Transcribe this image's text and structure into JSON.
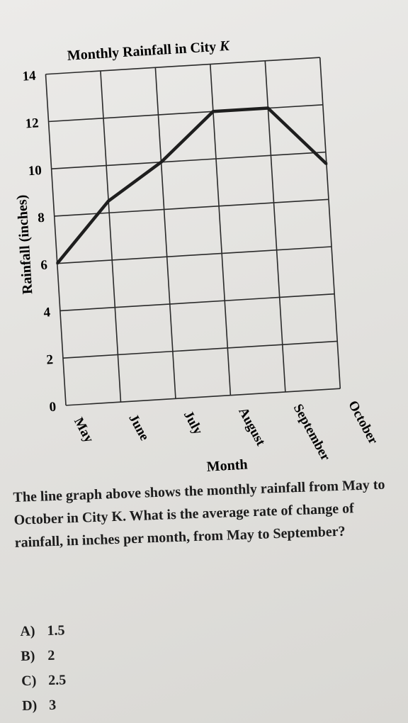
{
  "chart_data": {
    "type": "line",
    "title": "Monthly Rainfall in City K",
    "title_main": "Monthly Rainfall in City",
    "title_var": "K",
    "xlabel": "Month",
    "ylabel": "Rainfall (inches)",
    "categories": [
      "May",
      "June",
      "July",
      "August",
      "September",
      "October"
    ],
    "yticks": [
      0,
      2,
      4,
      6,
      8,
      10,
      12,
      14
    ],
    "ylim": [
      0,
      14
    ],
    "grid": true,
    "series": [
      {
        "values": [
          6,
          8.5,
          10,
          12,
          12,
          9.5
        ]
      }
    ]
  },
  "question": {
    "text": "The line graph above shows the monthly rainfall from May to October in City K. What is the average rate of change of rainfall, in inches per month, from May to September?"
  },
  "choices": [
    {
      "letter": "A)",
      "value": "1.5"
    },
    {
      "letter": "B)",
      "value": "2"
    },
    {
      "letter": "C)",
      "value": "2.5"
    },
    {
      "letter": "D)",
      "value": "3"
    }
  ]
}
